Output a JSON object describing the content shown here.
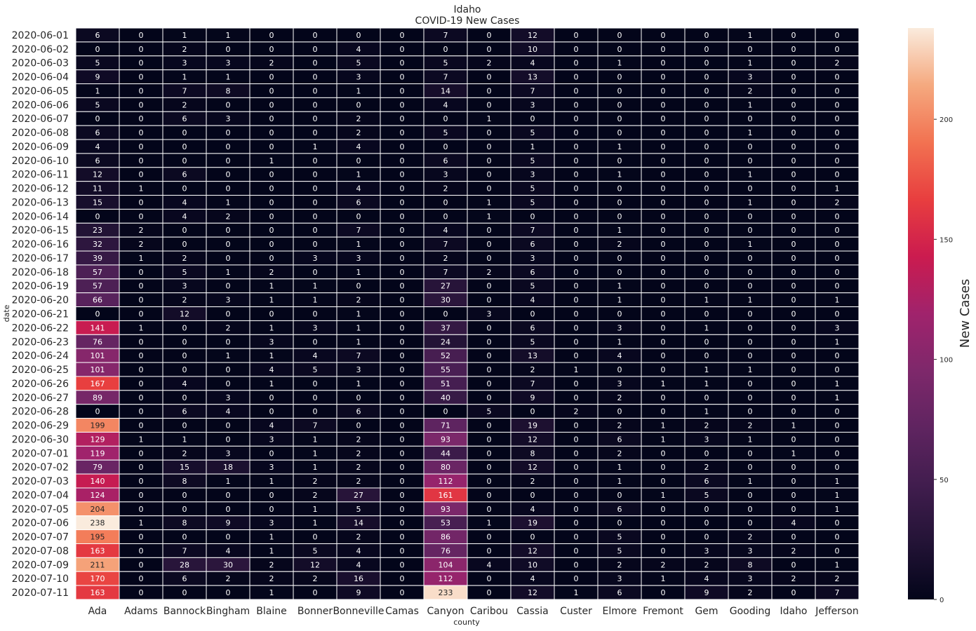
{
  "chart_data": {
    "type": "heatmap",
    "title": [
      "Idaho",
      "COVID-19 New Cases"
    ],
    "xlabel": "county",
    "ylabel": "date",
    "colorbar_label": "New Cases",
    "colorbar_ticks": [
      0,
      50,
      100,
      150,
      200
    ],
    "vmin": 0,
    "vmax": 238,
    "x": [
      "Ada",
      "Adams",
      "Bannock",
      "Bingham",
      "Blaine",
      "Bonner",
      "Bonneville",
      "Camas",
      "Canyon",
      "Caribou",
      "Cassia",
      "Custer",
      "Elmore",
      "Fremont",
      "Gem",
      "Gooding",
      "Idaho",
      "Jefferson"
    ],
    "y": [
      "2020-06-01",
      "2020-06-02",
      "2020-06-03",
      "2020-06-04",
      "2020-06-05",
      "2020-06-06",
      "2020-06-07",
      "2020-06-08",
      "2020-06-09",
      "2020-06-10",
      "2020-06-11",
      "2020-06-12",
      "2020-06-13",
      "2020-06-14",
      "2020-06-15",
      "2020-06-16",
      "2020-06-17",
      "2020-06-18",
      "2020-06-19",
      "2020-06-20",
      "2020-06-21",
      "2020-06-22",
      "2020-06-23",
      "2020-06-24",
      "2020-06-25",
      "2020-06-26",
      "2020-06-27",
      "2020-06-28",
      "2020-06-29",
      "2020-06-30",
      "2020-07-01",
      "2020-07-02",
      "2020-07-03",
      "2020-07-04",
      "2020-07-05",
      "2020-07-06",
      "2020-07-07",
      "2020-07-08",
      "2020-07-09",
      "2020-07-10",
      "2020-07-11"
    ],
    "values": [
      [
        6,
        0,
        1,
        1,
        0,
        0,
        0,
        0,
        7,
        0,
        12,
        0,
        0,
        0,
        0,
        1,
        0,
        0
      ],
      [
        0,
        0,
        2,
        0,
        0,
        0,
        4,
        0,
        0,
        0,
        10,
        0,
        0,
        0,
        0,
        0,
        0,
        0
      ],
      [
        5,
        0,
        3,
        3,
        2,
        0,
        5,
        0,
        5,
        2,
        4,
        0,
        1,
        0,
        0,
        1,
        0,
        2
      ],
      [
        9,
        0,
        1,
        1,
        0,
        0,
        3,
        0,
        7,
        0,
        13,
        0,
        0,
        0,
        0,
        3,
        0,
        0
      ],
      [
        1,
        0,
        7,
        8,
        0,
        0,
        1,
        0,
        14,
        0,
        7,
        0,
        0,
        0,
        0,
        2,
        0,
        0
      ],
      [
        5,
        0,
        2,
        0,
        0,
        0,
        0,
        0,
        4,
        0,
        3,
        0,
        0,
        0,
        0,
        1,
        0,
        0
      ],
      [
        0,
        0,
        6,
        3,
        0,
        0,
        2,
        0,
        0,
        1,
        0,
        0,
        0,
        0,
        0,
        0,
        0,
        0
      ],
      [
        6,
        0,
        0,
        0,
        0,
        0,
        2,
        0,
        5,
        0,
        5,
        0,
        0,
        0,
        0,
        1,
        0,
        0
      ],
      [
        4,
        0,
        0,
        0,
        0,
        1,
        4,
        0,
        0,
        0,
        1,
        0,
        1,
        0,
        0,
        0,
        0,
        0
      ],
      [
        6,
        0,
        0,
        0,
        1,
        0,
        0,
        0,
        6,
        0,
        5,
        0,
        0,
        0,
        0,
        0,
        0,
        0
      ],
      [
        12,
        0,
        6,
        0,
        0,
        0,
        1,
        0,
        3,
        0,
        3,
        0,
        1,
        0,
        0,
        1,
        0,
        0
      ],
      [
        11,
        1,
        0,
        0,
        0,
        0,
        4,
        0,
        2,
        0,
        5,
        0,
        0,
        0,
        0,
        0,
        0,
        1
      ],
      [
        15,
        0,
        4,
        1,
        0,
        0,
        6,
        0,
        0,
        1,
        5,
        0,
        0,
        0,
        0,
        1,
        0,
        2
      ],
      [
        0,
        0,
        4,
        2,
        0,
        0,
        0,
        0,
        0,
        1,
        0,
        0,
        0,
        0,
        0,
        0,
        0,
        0
      ],
      [
        23,
        2,
        0,
        0,
        0,
        0,
        7,
        0,
        4,
        0,
        7,
        0,
        1,
        0,
        0,
        0,
        0,
        0
      ],
      [
        32,
        2,
        0,
        0,
        0,
        0,
        1,
        0,
        7,
        0,
        6,
        0,
        2,
        0,
        0,
        1,
        0,
        0
      ],
      [
        39,
        1,
        2,
        0,
        0,
        3,
        3,
        0,
        2,
        0,
        3,
        0,
        0,
        0,
        0,
        0,
        0,
        0
      ],
      [
        57,
        0,
        5,
        1,
        2,
        0,
        1,
        0,
        7,
        2,
        6,
        0,
        0,
        0,
        0,
        0,
        0,
        0
      ],
      [
        57,
        0,
        3,
        0,
        1,
        1,
        0,
        0,
        27,
        0,
        5,
        0,
        1,
        0,
        0,
        0,
        0,
        0
      ],
      [
        66,
        0,
        2,
        3,
        1,
        1,
        2,
        0,
        30,
        0,
        4,
        0,
        1,
        0,
        1,
        1,
        0,
        1
      ],
      [
        0,
        0,
        12,
        0,
        0,
        0,
        1,
        0,
        0,
        3,
        0,
        0,
        0,
        0,
        0,
        0,
        0,
        0
      ],
      [
        141,
        1,
        0,
        2,
        1,
        3,
        1,
        0,
        37,
        0,
        6,
        0,
        3,
        0,
        1,
        0,
        0,
        3
      ],
      [
        76,
        0,
        0,
        0,
        3,
        0,
        1,
        0,
        24,
        0,
        5,
        0,
        1,
        0,
        0,
        0,
        0,
        1
      ],
      [
        101,
        0,
        0,
        1,
        1,
        4,
        7,
        0,
        52,
        0,
        13,
        0,
        4,
        0,
        0,
        0,
        0,
        0
      ],
      [
        101,
        0,
        0,
        0,
        4,
        5,
        3,
        0,
        55,
        0,
        2,
        1,
        0,
        0,
        1,
        1,
        0,
        0
      ],
      [
        167,
        0,
        4,
        0,
        1,
        0,
        1,
        0,
        51,
        0,
        7,
        0,
        3,
        1,
        1,
        0,
        0,
        1
      ],
      [
        89,
        0,
        0,
        3,
        0,
        0,
        0,
        0,
        40,
        0,
        9,
        0,
        2,
        0,
        0,
        0,
        0,
        1
      ],
      [
        0,
        0,
        6,
        4,
        0,
        0,
        6,
        0,
        0,
        5,
        0,
        2,
        0,
        0,
        1,
        0,
        0,
        0
      ],
      [
        199,
        0,
        0,
        0,
        4,
        7,
        0,
        0,
        71,
        0,
        19,
        0,
        2,
        1,
        2,
        2,
        1,
        0
      ],
      [
        129,
        1,
        1,
        0,
        3,
        1,
        2,
        0,
        93,
        0,
        12,
        0,
        6,
        1,
        3,
        1,
        0,
        0
      ],
      [
        119,
        0,
        2,
        3,
        0,
        1,
        2,
        0,
        44,
        0,
        8,
        0,
        2,
        0,
        0,
        0,
        1,
        0
      ],
      [
        79,
        0,
        15,
        18,
        3,
        1,
        2,
        0,
        80,
        0,
        12,
        0,
        1,
        0,
        2,
        0,
        0,
        0
      ],
      [
        140,
        0,
        8,
        1,
        1,
        2,
        2,
        0,
        112,
        0,
        2,
        0,
        1,
        0,
        6,
        1,
        0,
        1
      ],
      [
        124,
        0,
        0,
        0,
        0,
        2,
        27,
        0,
        161,
        0,
        0,
        0,
        0,
        1,
        5,
        0,
        0,
        1
      ],
      [
        204,
        0,
        0,
        0,
        0,
        1,
        5,
        0,
        93,
        0,
        4,
        0,
        6,
        0,
        0,
        0,
        0,
        1
      ],
      [
        238,
        1,
        8,
        9,
        3,
        1,
        14,
        0,
        53,
        1,
        19,
        0,
        0,
        0,
        0,
        0,
        4,
        0
      ],
      [
        195,
        0,
        0,
        0,
        1,
        0,
        2,
        0,
        86,
        0,
        0,
        0,
        5,
        0,
        0,
        2,
        0,
        0
      ],
      [
        163,
        0,
        7,
        4,
        1,
        5,
        4,
        0,
        76,
        0,
        12,
        0,
        5,
        0,
        3,
        3,
        2,
        0
      ],
      [
        211,
        0,
        28,
        30,
        2,
        12,
        4,
        0,
        104,
        4,
        10,
        0,
        2,
        2,
        2,
        8,
        0,
        1
      ],
      [
        170,
        0,
        6,
        2,
        2,
        2,
        16,
        0,
        112,
        0,
        4,
        0,
        3,
        1,
        4,
        3,
        2,
        2
      ],
      [
        163,
        0,
        0,
        0,
        1,
        0,
        9,
        0,
        233,
        0,
        12,
        1,
        6,
        0,
        9,
        2,
        0,
        7
      ]
    ]
  }
}
